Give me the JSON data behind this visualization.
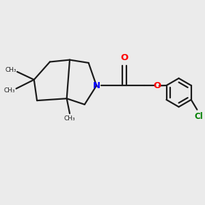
{
  "bg_color": "#ebebeb",
  "bond_color": "#1a1a1a",
  "N_color": "#0000ff",
  "O_color": "#ff0000",
  "Cl_color": "#008000",
  "line_width": 1.6,
  "fig_size": [
    3.0,
    3.0
  ],
  "dpi": 100,
  "xlim": [
    0,
    10
  ],
  "ylim": [
    0,
    10
  ]
}
